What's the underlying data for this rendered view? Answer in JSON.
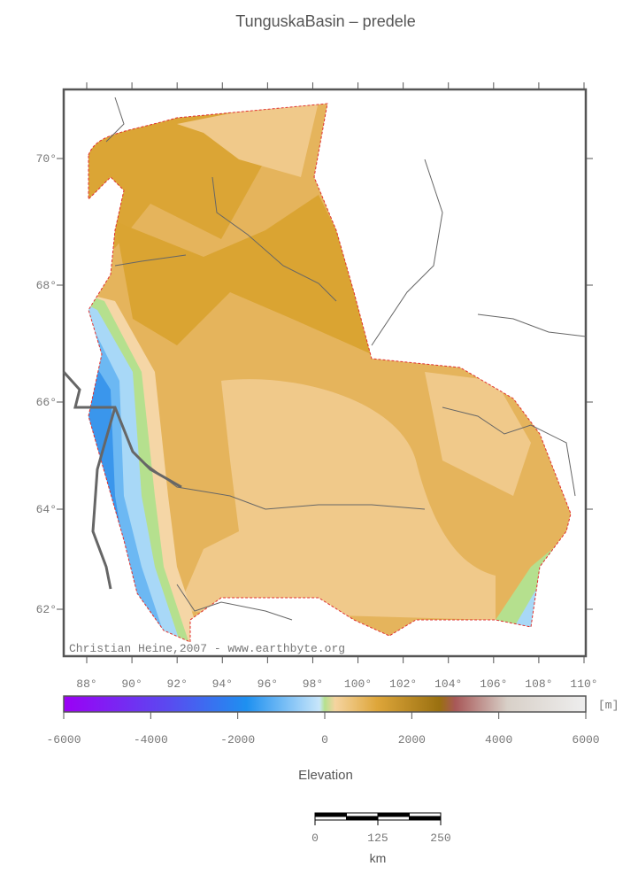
{
  "title": "TunguskaBasin – predele",
  "map": {
    "lat_labels": [
      "70°",
      "68°",
      "66°",
      "64°",
      "62°"
    ],
    "lon_labels": [
      "88°",
      "90°",
      "92°",
      "94°",
      "96°",
      "98°",
      "100°",
      "102°",
      "104°",
      "106°",
      "108°",
      "110°"
    ],
    "credit": "Christian Heine,2007 - www.earthbyte.org"
  },
  "colorbar": {
    "ticks": [
      -6000,
      -4000,
      -2000,
      0,
      2000,
      4000,
      6000
    ],
    "unit": "[m]",
    "label": "Elevation"
  },
  "scale_bar": {
    "ticks": [
      0,
      125,
      250
    ],
    "unit": "km"
  }
}
